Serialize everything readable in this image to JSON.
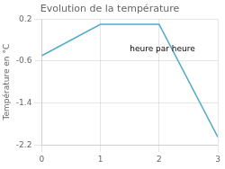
{
  "chart_data": {
    "type": "line",
    "title": "Evolution de la température",
    "ylabel": "Température en °C",
    "annotations": [
      {
        "text": "heure par heure",
        "x": 1.5,
        "y": -0.42
      }
    ],
    "x": [
      0,
      1,
      2,
      3
    ],
    "values": [
      -0.5,
      0.1,
      0.1,
      -2.05
    ],
    "color": "#55aacc",
    "xlim": [
      0,
      3
    ],
    "xticks": [
      0,
      1,
      2,
      3
    ],
    "ylim": [
      -2.2,
      0.2
    ],
    "yticks": [
      0.2,
      -0.6,
      -1.4,
      -2.2
    ],
    "grid": true
  }
}
